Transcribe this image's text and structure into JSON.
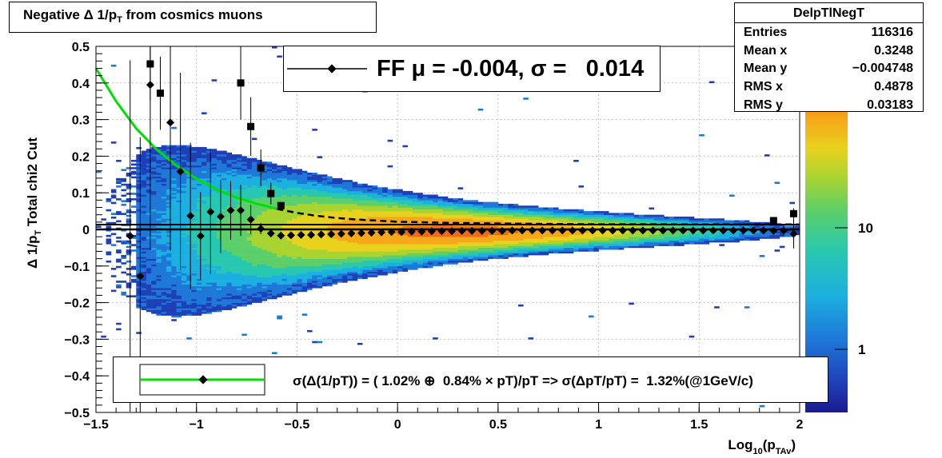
{
  "title": "Negative Δ 1/p_T from cosmics muons",
  "title_parts": {
    "pre": "Negative Δ 1/p",
    "sub": "T",
    "post": " from cosmics muons"
  },
  "stats": {
    "name": "DelpTlNegT",
    "rows": [
      {
        "label": "Entries",
        "value": "116316"
      },
      {
        "label": "Mean x",
        "value": "0.3248"
      },
      {
        "label": "Mean y",
        "value": "−0.004748"
      },
      {
        "label": "RMS x",
        "value": "0.4878"
      },
      {
        "label": "RMS y",
        "value": "0.03183"
      }
    ]
  },
  "fit_legend": "FF μ = -0.004, σ =   0.014",
  "resolution_legend": "σ(Δ(1/pT)) = ( 1.02% ⊕  0.84% × pT)/pT => σ(ΔpT/pT) =  1.32%(@1GeV/c)",
  "y_axis_title": {
    "pre": "Δ 1/p",
    "sub": "T",
    "post": "  Total chi2 Cut"
  },
  "x_axis_title": {
    "pre": "Log",
    "sub": "10",
    "mid": "(p",
    "sub2": "TAv",
    "post": ")"
  },
  "colors": {
    "fit_curve": "#00e000",
    "markers": "#000000",
    "frame": "#000000"
  },
  "chart_data": {
    "type": "heatmap",
    "title": "Negative Δ 1/p_T from cosmics muons",
    "xlabel": "Log10(p_TAv)",
    "ylabel": "Δ 1/p_T  Total chi2 Cut",
    "xlim": [
      -1.5,
      2.0
    ],
    "ylim": [
      -0.5,
      0.5
    ],
    "x_ticks": [
      "−1.5",
      "−1",
      "−0.5",
      "0",
      "0.5",
      "1",
      "1.5",
      "2"
    ],
    "y_ticks": [
      "0.5",
      "0.4",
      "0.3",
      "0.2",
      "0.1",
      "0",
      "−0.1",
      "−0.2",
      "−0.3",
      "−0.4",
      "−0.5"
    ],
    "z_scale": "log",
    "z_ticks": [
      "10",
      "1"
    ],
    "grid": true,
    "mean_profile": [
      {
        "x": -1.33,
        "y": -0.018,
        "err": 0.48
      },
      {
        "x": -1.28,
        "y": -0.128,
        "err": 0.38
      },
      {
        "x": -1.23,
        "y": 0.395,
        "err": 0.45
      },
      {
        "x": -1.13,
        "y": 0.292,
        "err": 0.35
      },
      {
        "x": -1.08,
        "y": 0.158,
        "err": 0.27
      },
      {
        "x": -1.03,
        "y": 0.037,
        "err": 0.2
      },
      {
        "x": -0.98,
        "y": -0.018,
        "err": 0.12
      },
      {
        "x": -0.93,
        "y": 0.048,
        "err": 0.17
      },
      {
        "x": -0.88,
        "y": 0.035,
        "err": 0.1
      },
      {
        "x": -0.83,
        "y": 0.052,
        "err": 0.08
      },
      {
        "x": -0.78,
        "y": 0.052,
        "err": 0.07
      },
      {
        "x": -0.73,
        "y": 0.027,
        "err": 0.04
      },
      {
        "x": -0.68,
        "y": 0.002,
        "err": 0.015
      },
      {
        "x": -0.63,
        "y": -0.011,
        "err": 0.01
      },
      {
        "x": -0.58,
        "y": -0.017,
        "err": 0.006
      },
      {
        "x": -0.53,
        "y": -0.016,
        "err": 0.004
      },
      {
        "x": -0.48,
        "y": -0.015,
        "err": 0.003
      },
      {
        "x": -0.43,
        "y": -0.015,
        "err": 0.002
      },
      {
        "x": -0.38,
        "y": -0.014,
        "err": 0.002
      },
      {
        "x": -0.33,
        "y": -0.013,
        "err": 0.002
      },
      {
        "x": -0.28,
        "y": -0.012,
        "err": 0.002
      },
      {
        "x": -0.23,
        "y": -0.011,
        "err": 0.002
      },
      {
        "x": -0.18,
        "y": -0.01,
        "err": 0.002
      },
      {
        "x": -0.13,
        "y": -0.009,
        "err": 0.002
      },
      {
        "x": -0.08,
        "y": -0.008,
        "err": 0.002
      },
      {
        "x": -0.03,
        "y": -0.007,
        "err": 0.002
      },
      {
        "x": 0.02,
        "y": -0.007,
        "err": 0.002
      },
      {
        "x": 0.07,
        "y": -0.006,
        "err": 0.002
      },
      {
        "x": 0.12,
        "y": -0.006,
        "err": 0.002
      },
      {
        "x": 0.17,
        "y": -0.005,
        "err": 0.002
      },
      {
        "x": 0.22,
        "y": -0.005,
        "err": 0.002
      },
      {
        "x": 0.27,
        "y": -0.005,
        "err": 0.002
      },
      {
        "x": 0.32,
        "y": -0.004,
        "err": 0.002
      },
      {
        "x": 0.37,
        "y": -0.004,
        "err": 0.002
      },
      {
        "x": 0.42,
        "y": -0.004,
        "err": 0.002
      },
      {
        "x": 0.47,
        "y": -0.004,
        "err": 0.002
      },
      {
        "x": 0.52,
        "y": -0.004,
        "err": 0.002
      },
      {
        "x": 0.57,
        "y": -0.003,
        "err": 0.002
      },
      {
        "x": 0.62,
        "y": -0.003,
        "err": 0.002
      },
      {
        "x": 0.67,
        "y": -0.003,
        "err": 0.002
      },
      {
        "x": 0.72,
        "y": -0.003,
        "err": 0.002
      },
      {
        "x": 0.77,
        "y": -0.003,
        "err": 0.002
      },
      {
        "x": 0.82,
        "y": -0.003,
        "err": 0.002
      },
      {
        "x": 0.87,
        "y": -0.003,
        "err": 0.002
      },
      {
        "x": 0.92,
        "y": -0.003,
        "err": 0.002
      },
      {
        "x": 0.97,
        "y": -0.003,
        "err": 0.002
      },
      {
        "x": 1.02,
        "y": -0.003,
        "err": 0.002
      },
      {
        "x": 1.07,
        "y": -0.003,
        "err": 0.002
      },
      {
        "x": 1.12,
        "y": -0.003,
        "err": 0.002
      },
      {
        "x": 1.17,
        "y": -0.003,
        "err": 0.002
      },
      {
        "x": 1.22,
        "y": -0.003,
        "err": 0.002
      },
      {
        "x": 1.27,
        "y": -0.003,
        "err": 0.002
      },
      {
        "x": 1.32,
        "y": -0.003,
        "err": 0.002
      },
      {
        "x": 1.37,
        "y": -0.003,
        "err": 0.002
      },
      {
        "x": 1.42,
        "y": -0.003,
        "err": 0.002
      },
      {
        "x": 1.47,
        "y": -0.003,
        "err": 0.002
      },
      {
        "x": 1.52,
        "y": -0.003,
        "err": 0.003
      },
      {
        "x": 1.57,
        "y": -0.003,
        "err": 0.003
      },
      {
        "x": 1.62,
        "y": -0.003,
        "err": 0.003
      },
      {
        "x": 1.67,
        "y": -0.003,
        "err": 0.003
      },
      {
        "x": 1.72,
        "y": -0.003,
        "err": 0.004
      },
      {
        "x": 1.77,
        "y": -0.003,
        "err": 0.005
      },
      {
        "x": 1.82,
        "y": -0.003,
        "err": 0.006
      },
      {
        "x": 1.87,
        "y": -0.004,
        "err": 0.008
      },
      {
        "x": 1.92,
        "y": -0.003,
        "err": 0.012
      },
      {
        "x": 1.97,
        "y": -0.012,
        "err": 0.04
      }
    ],
    "rms_profile": [
      {
        "x": -1.23,
        "y": 0.452,
        "err": 0.1
      },
      {
        "x": -1.18,
        "y": 0.372,
        "err": 0.1
      },
      {
        "x": -0.78,
        "y": 0.4,
        "err": 0.1
      },
      {
        "x": -0.73,
        "y": 0.281,
        "err": 0.08
      },
      {
        "x": -0.68,
        "y": 0.168,
        "err": 0.05
      },
      {
        "x": -0.63,
        "y": 0.098,
        "err": 0.03
      },
      {
        "x": -0.58,
        "y": 0.065,
        "err": 0.01
      },
      {
        "x": 1.87,
        "y": 0.024,
        "err": 0.004
      },
      {
        "x": 1.97,
        "y": 0.043,
        "err": 0.015
      }
    ],
    "fit_curve": [
      {
        "x": -1.5,
        "y": 0.44
      },
      {
        "x": -1.4,
        "y": 0.35
      },
      {
        "x": -1.3,
        "y": 0.276
      },
      {
        "x": -1.2,
        "y": 0.219
      },
      {
        "x": -1.1,
        "y": 0.174
      },
      {
        "x": -1.0,
        "y": 0.138
      },
      {
        "x": -0.9,
        "y": 0.109
      },
      {
        "x": -0.8,
        "y": 0.087
      },
      {
        "x": -0.7,
        "y": 0.07
      },
      {
        "x": -0.6,
        "y": 0.056
      },
      {
        "x": -0.5,
        "y": 0.045
      },
      {
        "x": -0.4,
        "y": 0.037
      },
      {
        "x": -0.3,
        "y": 0.031
      },
      {
        "x": -0.2,
        "y": 0.027
      },
      {
        "x": -0.1,
        "y": 0.024
      },
      {
        "x": 0.0,
        "y": 0.021
      },
      {
        "x": 0.25,
        "y": 0.018
      },
      {
        "x": 0.5,
        "y": 0.016
      },
      {
        "x": 0.75,
        "y": 0.015
      },
      {
        "x": 1.0,
        "y": 0.014
      },
      {
        "x": 1.5,
        "y": 0.0137
      },
      {
        "x": 2.0,
        "y": 0.0135
      }
    ],
    "fit_line_y": 0.0
  }
}
